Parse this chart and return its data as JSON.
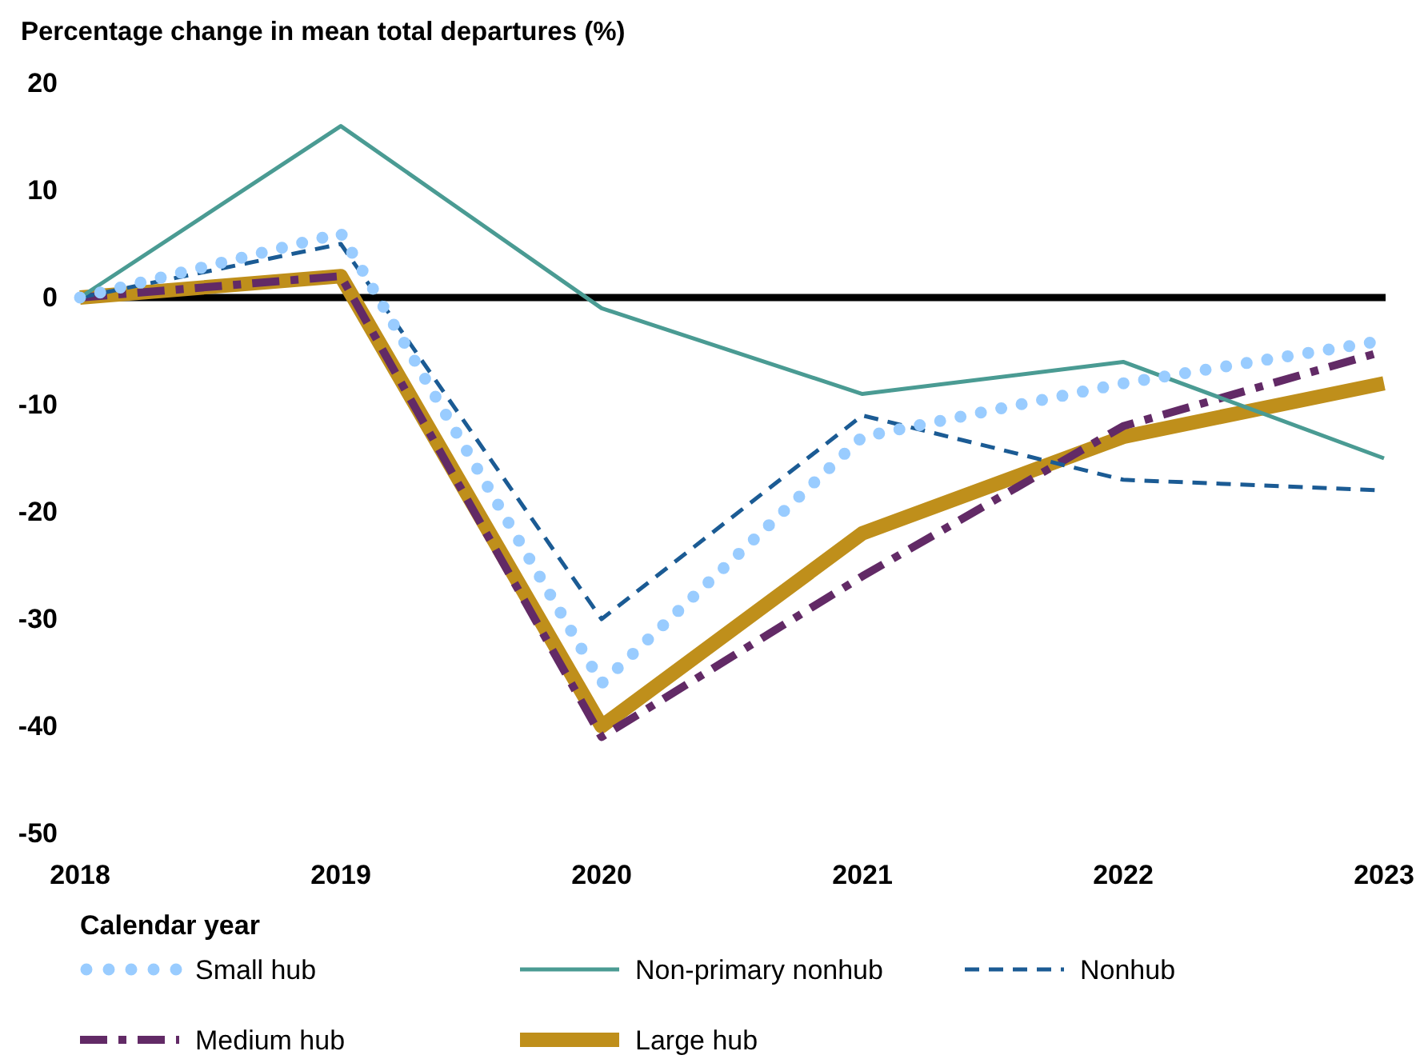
{
  "chart_data": {
    "type": "line",
    "ylabel": "Percentage change in mean total departures (%)",
    "xlabel": "Calendar year",
    "categories": [
      "2018",
      "2019",
      "2020",
      "2021",
      "2022",
      "2023"
    ],
    "ylim": [
      -50,
      20
    ],
    "yticks": [
      -50,
      -40,
      -30,
      -20,
      -10,
      0,
      10,
      20
    ],
    "legend": "bottom",
    "ref_lines": [
      {
        "axis": "y",
        "value": 0,
        "color": "#000000"
      }
    ],
    "series": [
      {
        "name": "Small hub",
        "color": "#99ccff",
        "line_style": "dotted",
        "values": [
          0,
          6,
          -36,
          -13,
          -8,
          -4
        ]
      },
      {
        "name": "Non-primary nonhub",
        "color": "#4a9b93",
        "line_style": "solid",
        "values": [
          0,
          16,
          -1,
          -9,
          -6,
          -15
        ]
      },
      {
        "name": "Nonhub",
        "color": "#1b5b94",
        "line_style": "dashed",
        "values": [
          0,
          5,
          -30,
          -11,
          -17,
          -18
        ]
      },
      {
        "name": "Medium hub",
        "color": "#622a66",
        "line_style": "dashdot",
        "values": [
          0,
          2,
          -41,
          -26,
          -12,
          -5
        ]
      },
      {
        "name": "Large hub",
        "color": "#bf8f1b",
        "line_style": "solid",
        "values": [
          0,
          2,
          -40,
          -22,
          -13,
          -8
        ]
      }
    ]
  }
}
